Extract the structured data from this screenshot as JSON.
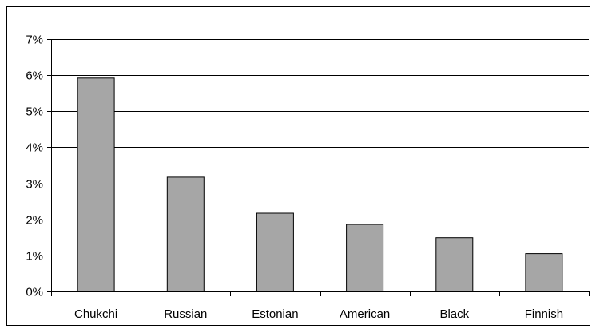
{
  "chart_data": {
    "type": "bar",
    "categories": [
      "Chukchi",
      "Russian",
      "Estonian",
      "American",
      "Black",
      "Finnish"
    ],
    "values": [
      5.92,
      3.17,
      2.17,
      1.86,
      1.49,
      1.05
    ],
    "value_unit": "%",
    "ylim": [
      0,
      7
    ],
    "yticks": [
      0,
      1,
      2,
      3,
      4,
      5,
      6,
      7
    ],
    "ytick_labels": [
      "0%",
      "1%",
      "2%",
      "3%",
      "4%",
      "5%",
      "6%",
      "7%"
    ],
    "grid": true,
    "legend": "none",
    "colors": {
      "bar_fill": "#a6a6a6",
      "bar_stroke": "#000000",
      "grid": "#000000",
      "frame": "#000000",
      "background": "#ffffff"
    }
  }
}
